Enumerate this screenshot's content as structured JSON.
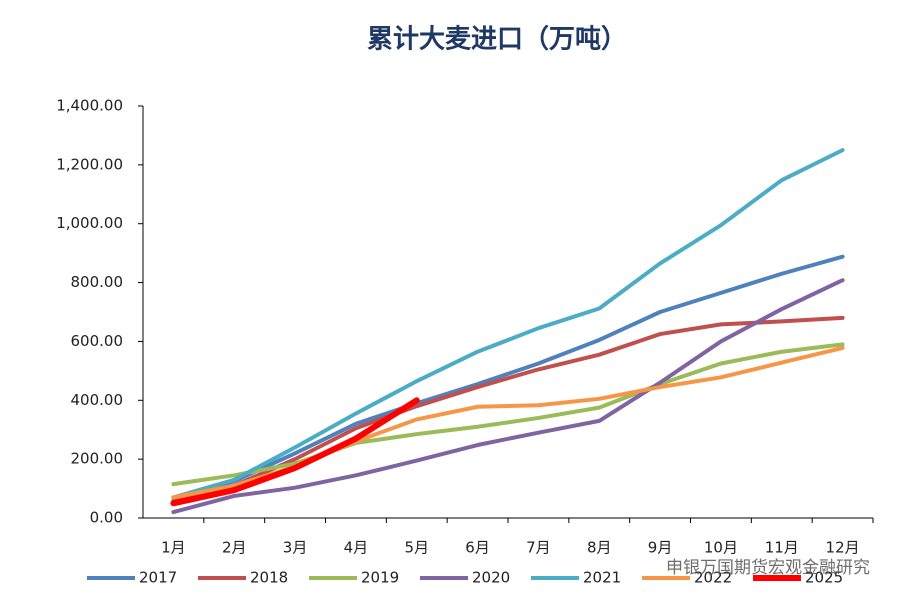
{
  "chart_data": {
    "type": "line",
    "title": "累计大麦进口（万吨）",
    "categories": [
      "1月",
      "2月",
      "3月",
      "4月",
      "5月",
      "6月",
      "7月",
      "8月",
      "9月",
      "10月",
      "11月",
      "12月"
    ],
    "series": [
      {
        "name": "2017",
        "color": "#4f81bd",
        "values": [
          60,
          125,
          220,
          320,
          390,
          455,
          525,
          605,
          700,
          765,
          830,
          888
        ]
      },
      {
        "name": "2018",
        "color": "#c0504d",
        "values": [
          55,
          110,
          200,
          305,
          380,
          445,
          505,
          555,
          625,
          658,
          668,
          680
        ]
      },
      {
        "name": "2019",
        "color": "#9bbb59",
        "values": [
          115,
          145,
          185,
          255,
          285,
          310,
          340,
          375,
          455,
          525,
          565,
          590
        ]
      },
      {
        "name": "2020",
        "color": "#8064a2",
        "values": [
          20,
          75,
          103,
          145,
          195,
          248,
          290,
          330,
          460,
          600,
          710,
          808
        ]
      },
      {
        "name": "2021",
        "color": "#4bacc6",
        "values": [
          70,
          130,
          240,
          355,
          465,
          565,
          645,
          712,
          865,
          995,
          1148,
          1250
        ]
      },
      {
        "name": "2022",
        "color": "#f79646",
        "values": [
          70,
          110,
          175,
          260,
          335,
          378,
          383,
          405,
          445,
          478,
          528,
          578
        ]
      },
      {
        "name": "2025",
        "color": "#ff0000",
        "values": [
          50,
          95,
          170,
          270,
          400,
          null,
          null,
          null,
          null,
          null,
          null,
          null
        ]
      }
    ],
    "ylim": [
      0,
      1400
    ],
    "yticks": [
      {
        "value": 0,
        "label": "0.00"
      },
      {
        "value": 200,
        "label": "200.00"
      },
      {
        "value": 400,
        "label": "400.00"
      },
      {
        "value": 600,
        "label": "600.00"
      },
      {
        "value": 800,
        "label": "800.00"
      },
      {
        "value": 1000,
        "label": "1,000.00"
      },
      {
        "value": 1200,
        "label": "1,200.00"
      },
      {
        "value": 1400,
        "label": "1,400.00"
      }
    ],
    "legend": "bottom",
    "watermark": "申银万国期货宏观金融研究"
  }
}
